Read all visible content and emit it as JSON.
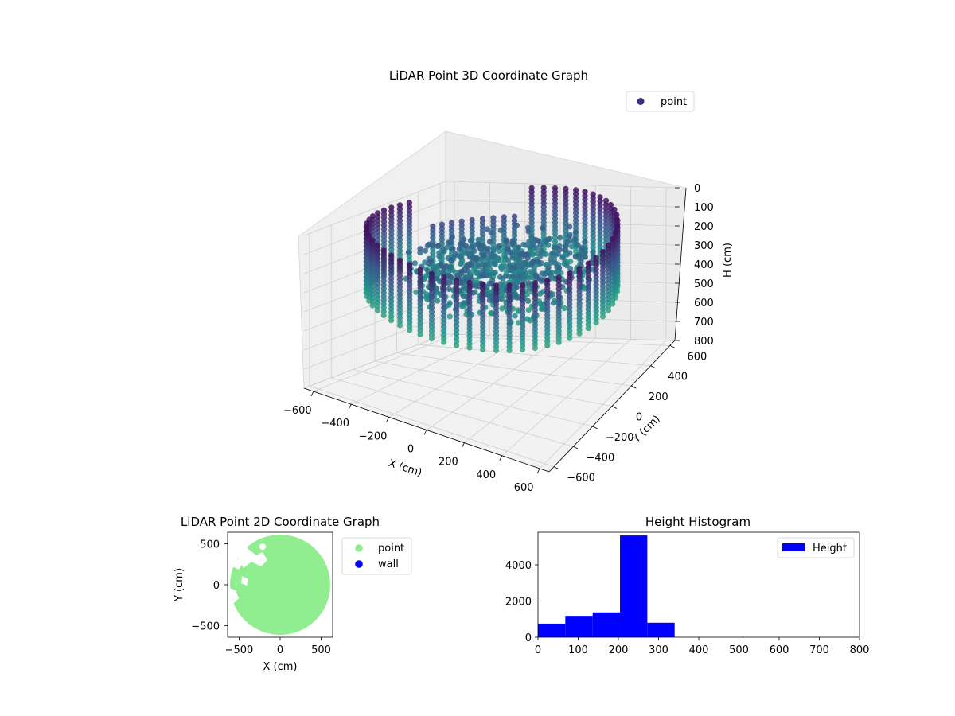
{
  "chart_data": [
    {
      "type": "scatter3d",
      "title": "LiDAR Point 3D Coordinate Graph",
      "xlabel": "X (cm)",
      "ylabel": "Y (cm)",
      "zlabel": "H (cm)",
      "xlim": [
        -650,
        650
      ],
      "ylim": [
        -650,
        650
      ],
      "zlim": [
        800,
        0
      ],
      "x_ticks": [
        "−600",
        "−400",
        "−200",
        "0",
        "200",
        "400",
        "600"
      ],
      "y_ticks": [
        "−600",
        "−400",
        "−200",
        "0",
        "200",
        "400",
        "600"
      ],
      "z_ticks": [
        "0",
        "100",
        "200",
        "300",
        "400",
        "500",
        "600",
        "700",
        "800"
      ],
      "legend": {
        "placement": "upper-right",
        "entries": [
          {
            "label": "point",
            "color": "#3b2e80"
          }
        ]
      },
      "colormap": "viridis",
      "grid": true,
      "series": [
        {
          "name": "point",
          "shape": "ring wall points of a room, radius about 600 cm, heights about 0-340 cm, plus interior clutter",
          "ring_radius": 600,
          "height_range": [
            0,
            340
          ]
        }
      ]
    },
    {
      "type": "scatter",
      "title": "LiDAR Point 2D Coordinate Graph",
      "xlabel": "X (cm)",
      "ylabel": "Y (cm)",
      "xlim": [
        -640,
        640
      ],
      "ylim": [
        -640,
        640
      ],
      "x_ticks": [
        "−500",
        "0",
        "500"
      ],
      "y_ticks": [
        "−500",
        "0",
        "500"
      ],
      "legend": {
        "placement": "outside-right",
        "entries": [
          {
            "label": "point",
            "color": "#90ee90"
          },
          {
            "label": "wall",
            "color": "#0000ff"
          }
        ]
      },
      "series": [
        {
          "name": "point",
          "color": "#90ee90",
          "shape": "filled disk, radius about 600 cm, with notches on the upper-left"
        },
        {
          "name": "wall",
          "color": "#0000ff",
          "points": []
        }
      ]
    },
    {
      "type": "bar",
      "title": "Height Histogram",
      "xlim": [
        0,
        800
      ],
      "ylim": [
        0,
        5800
      ],
      "x_ticks": [
        "0",
        "100",
        "200",
        "300",
        "400",
        "500",
        "600",
        "700",
        "800"
      ],
      "y_ticks": [
        "0",
        "2000",
        "4000"
      ],
      "legend": {
        "placement": "upper-right",
        "entries": [
          {
            "label": "Height",
            "color": "#0000ff"
          }
        ]
      },
      "bar_color": "#0000ff",
      "bins": [
        {
          "x0": 0,
          "x1": 68,
          "count": 750
        },
        {
          "x0": 68,
          "x1": 136,
          "count": 1180
        },
        {
          "x0": 136,
          "x1": 204,
          "count": 1370
        },
        {
          "x0": 204,
          "x1": 272,
          "count": 5620
        },
        {
          "x0": 272,
          "x1": 340,
          "count": 800
        }
      ]
    }
  ]
}
